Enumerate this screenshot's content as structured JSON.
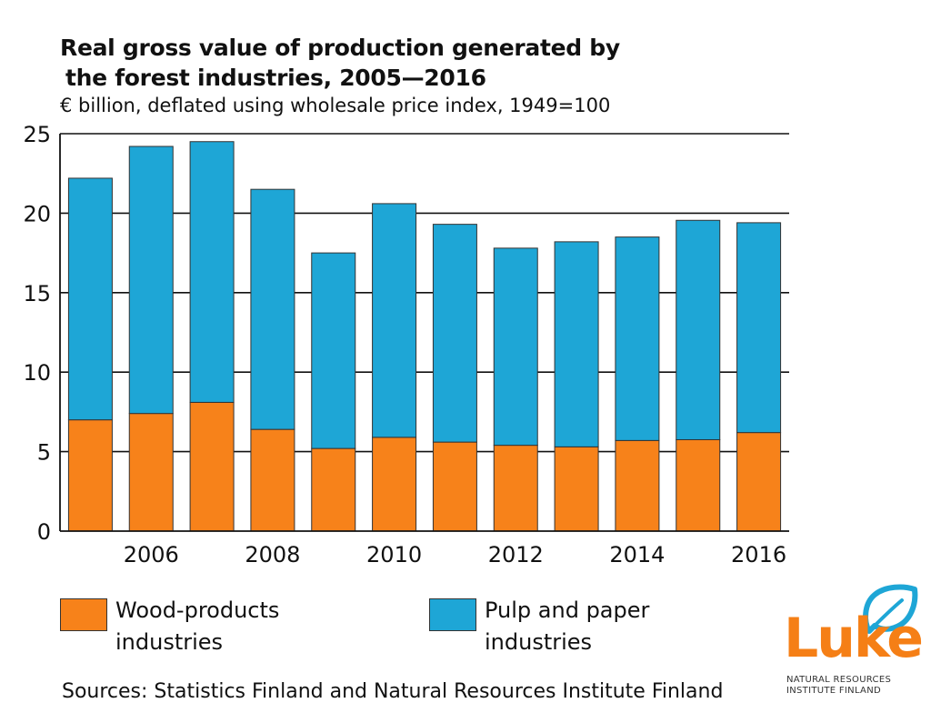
{
  "title_line1": "Real gross value of production generated by",
  "title_line2": "the forest industries, 2005—2016",
  "subtitle": "€ billion, deflated using wholesale price index, 1949=100",
  "legend": {
    "wood_line1": "Wood-products",
    "wood_line2": "industries",
    "pulp_line1": "Pulp and paper",
    "pulp_line2": "industries"
  },
  "source": "Sources: Statistics Finland and Natural Resources Institute Finland",
  "logo": {
    "word": "Luke",
    "line1": "NATURAL RESOURCES",
    "line2": "INSTITUTE FINLAND"
  },
  "colors": {
    "wood": "#f7821a",
    "pulp": "#1ea6d6",
    "logo_orange": "#f57f16",
    "logo_blue": "#1ea6d6"
  },
  "chart_data": {
    "type": "bar",
    "stacked": true,
    "title": "Real gross value of production generated by the forest industries, 2005—2016",
    "ylabel": "€ billion, deflated using wholesale price index, 1949=100",
    "xlabel": "",
    "ylim": [
      0,
      25
    ],
    "yticks": [
      0,
      5,
      10,
      15,
      20,
      25
    ],
    "years": [
      2005,
      2006,
      2007,
      2008,
      2009,
      2010,
      2011,
      2012,
      2013,
      2014,
      2015,
      2016
    ],
    "xtick_labels": [
      "2006",
      "2008",
      "2010",
      "2012",
      "2014",
      "2016"
    ],
    "grid": true,
    "series": [
      {
        "name": "Wood-products industries",
        "color": "#f7821a",
        "values": [
          7.0,
          7.4,
          8.1,
          6.4,
          5.2,
          5.9,
          5.6,
          5.4,
          5.3,
          5.7,
          5.75,
          6.2
        ]
      },
      {
        "name": "Pulp and paper industries",
        "color": "#1ea6d6",
        "values": [
          15.2,
          16.8,
          16.4,
          15.1,
          12.3,
          14.7,
          13.7,
          12.4,
          12.9,
          12.8,
          13.8,
          13.2
        ]
      }
    ],
    "totals": [
      22.2,
      24.2,
      24.5,
      21.5,
      17.5,
      20.6,
      19.3,
      17.8,
      18.2,
      18.5,
      19.55,
      19.4
    ]
  }
}
